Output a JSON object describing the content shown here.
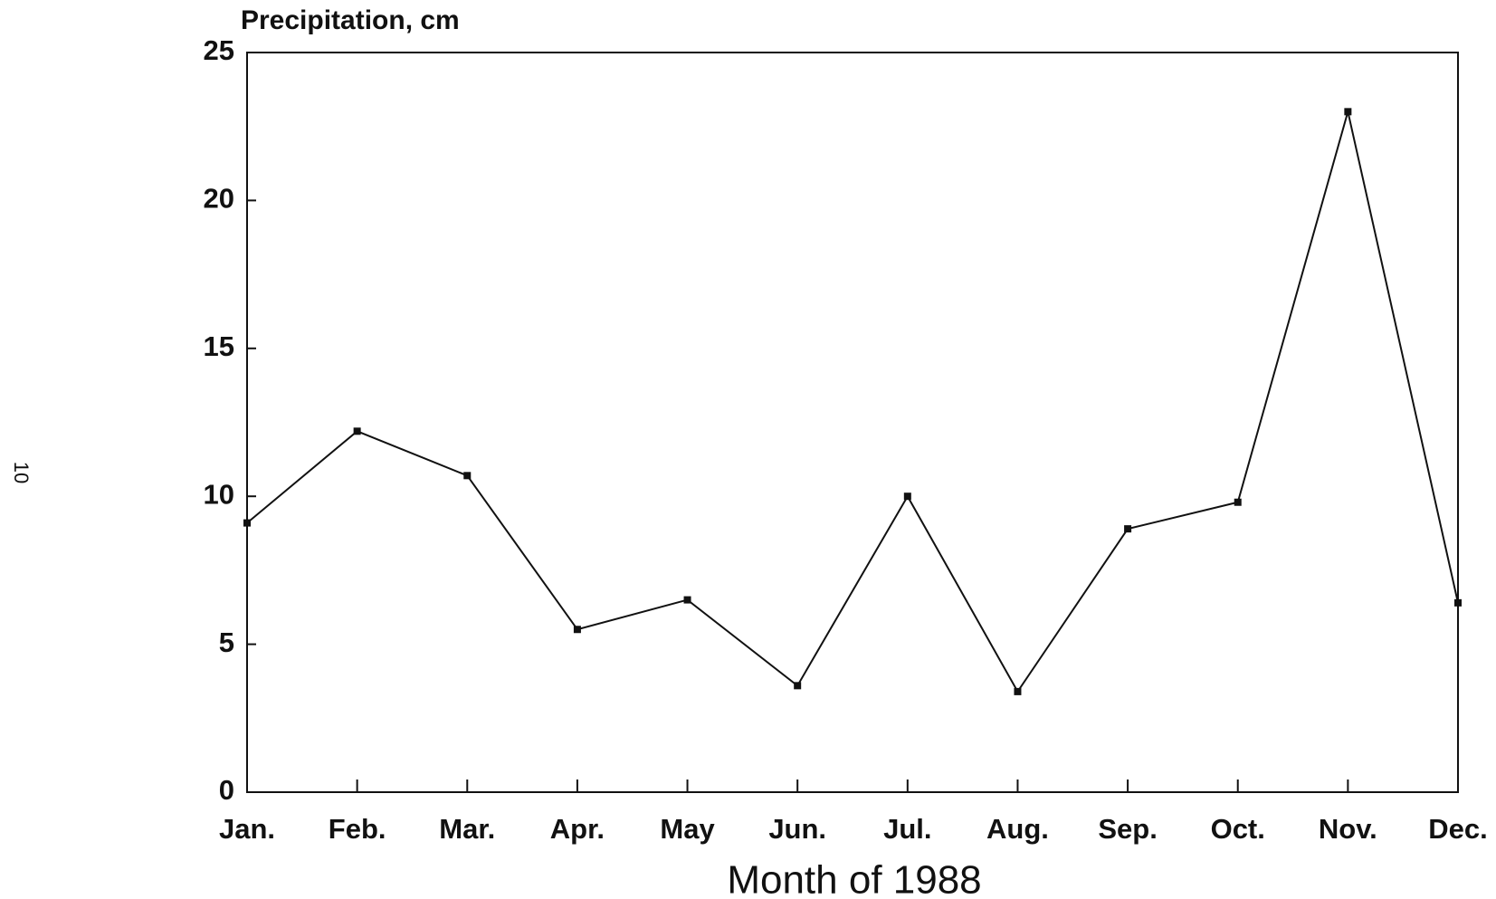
{
  "chart_data": {
    "type": "line",
    "y_label": "Precipitation, cm",
    "x_label": "Month of 1988",
    "page_number": "10",
    "categories": [
      "Jan.",
      "Feb.",
      "Mar.",
      "Apr.",
      "May",
      "Jun.",
      "Jul.",
      "Aug.",
      "Sep.",
      "Oct.",
      "Nov.",
      "Dec."
    ],
    "series": [
      {
        "name": "Precipitation",
        "color": "#111111",
        "values": [
          9.1,
          12.2,
          10.7,
          5.5,
          6.5,
          3.6,
          10.0,
          3.4,
          8.9,
          9.8,
          23.0,
          6.4
        ]
      }
    ],
    "ylim": [
      0,
      25
    ],
    "yticks": [
      0,
      5,
      10,
      15,
      20,
      25
    ],
    "grid": false
  }
}
